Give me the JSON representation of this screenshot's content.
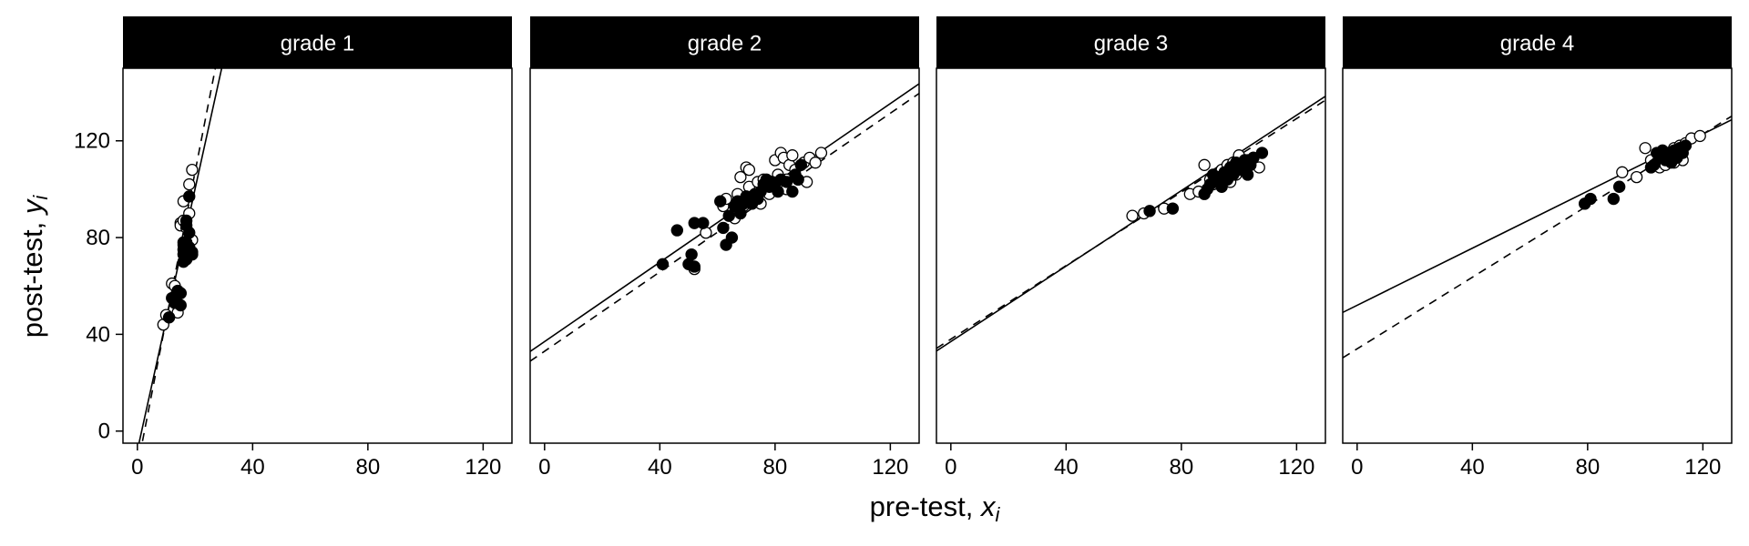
{
  "chart_data": {
    "type": "scatter",
    "xlabel": "pre-test, ",
    "xlabel_var": "x",
    "xlabel_sub": "i",
    "ylabel": "post-test, ",
    "ylabel_var": "y",
    "ylabel_sub": "i",
    "xlim": [
      -5,
      130
    ],
    "ylim": [
      -5,
      150
    ],
    "xticks": [
      0,
      40,
      80,
      120
    ],
    "yticks": [
      0,
      40,
      80,
      120
    ],
    "grid": false,
    "legend": "none",
    "colors": {
      "strip_bg": "#000000",
      "strip_text": "#ffffff",
      "points": "#000000",
      "lines": "#000000"
    },
    "panels": [
      {
        "label": "grade 1",
        "fit_solid": {
          "intercept": -8,
          "slope": 5.4
        },
        "fit_dashed": {
          "intercept": -15,
          "slope": 6.1
        },
        "points_open": [
          [
            9,
            44
          ],
          [
            10,
            48
          ],
          [
            12,
            61
          ],
          [
            13,
            54
          ],
          [
            14,
            52
          ],
          [
            14,
            49
          ],
          [
            15,
            86
          ],
          [
            15,
            85
          ],
          [
            16,
            87
          ],
          [
            16,
            77
          ],
          [
            16,
            95
          ],
          [
            17,
            84
          ],
          [
            17,
            72
          ],
          [
            18,
            90
          ],
          [
            18,
            102
          ],
          [
            19,
            108
          ],
          [
            19,
            79
          ],
          [
            15,
            57
          ],
          [
            13,
            60
          ]
        ],
        "points_filled": [
          [
            11,
            47
          ],
          [
            12,
            55
          ],
          [
            13,
            53
          ],
          [
            14,
            58
          ],
          [
            15,
            57
          ],
          [
            15,
            52
          ],
          [
            16,
            70
          ],
          [
            16,
            73
          ],
          [
            16,
            75
          ],
          [
            17,
            71
          ],
          [
            17,
            85
          ],
          [
            17,
            78
          ],
          [
            17,
            87
          ],
          [
            18,
            82
          ],
          [
            18,
            97
          ],
          [
            18,
            76
          ],
          [
            19,
            74
          ],
          [
            19,
            73
          ],
          [
            16,
            78
          ]
        ]
      },
      {
        "label": "grade 2",
        "fit_solid": {
          "intercept": 37,
          "slope": 0.82
        },
        "fit_dashed": {
          "intercept": 33,
          "slope": 0.82
        },
        "points_open": [
          [
            52,
            67
          ],
          [
            56,
            82
          ],
          [
            62,
            93
          ],
          [
            63,
            96
          ],
          [
            66,
            88
          ],
          [
            67,
            98
          ],
          [
            68,
            105
          ],
          [
            69,
            93
          ],
          [
            70,
            109
          ],
          [
            71,
            101
          ],
          [
            72,
            97
          ],
          [
            74,
            103
          ],
          [
            75,
            94
          ],
          [
            76,
            104
          ],
          [
            78,
            98
          ],
          [
            79,
            103
          ],
          [
            80,
            112
          ],
          [
            81,
            106
          ],
          [
            82,
            115
          ],
          [
            83,
            113
          ],
          [
            84,
            104
          ],
          [
            85,
            110
          ],
          [
            86,
            114
          ],
          [
            87,
            108
          ],
          [
            88,
            104
          ],
          [
            90,
            111
          ],
          [
            92,
            113
          ],
          [
            94,
            111
          ],
          [
            96,
            115
          ],
          [
            71,
            108
          ],
          [
            84,
            100
          ],
          [
            91,
            103
          ]
        ],
        "points_filled": [
          [
            41,
            69
          ],
          [
            46,
            83
          ],
          [
            50,
            69
          ],
          [
            51,
            73
          ],
          [
            52,
            68
          ],
          [
            52,
            86
          ],
          [
            55,
            86
          ],
          [
            61,
            95
          ],
          [
            62,
            84
          ],
          [
            63,
            77
          ],
          [
            64,
            89
          ],
          [
            65,
            80
          ],
          [
            66,
            93
          ],
          [
            67,
            95
          ],
          [
            68,
            90
          ],
          [
            69,
            94
          ],
          [
            70,
            97
          ],
          [
            71,
            95
          ],
          [
            72,
            94
          ],
          [
            73,
            98
          ],
          [
            74,
            96
          ],
          [
            75,
            99
          ],
          [
            76,
            102
          ],
          [
            77,
            104
          ],
          [
            78,
            101
          ],
          [
            79,
            103
          ],
          [
            80,
            102
          ],
          [
            81,
            99
          ],
          [
            82,
            104
          ],
          [
            84,
            103
          ],
          [
            86,
            99
          ],
          [
            87,
            106
          ],
          [
            88,
            104
          ],
          [
            89,
            110
          ]
        ]
      },
      {
        "label": "grade 3",
        "fit_solid": {
          "intercept": 37,
          "slope": 0.78
        },
        "fit_dashed": {
          "intercept": 38,
          "slope": 0.76
        },
        "points_open": [
          [
            63,
            89
          ],
          [
            67,
            90
          ],
          [
            74,
            92
          ],
          [
            83,
            98
          ],
          [
            86,
            99
          ],
          [
            88,
            110
          ],
          [
            90,
            104
          ],
          [
            91,
            102
          ],
          [
            92,
            106
          ],
          [
            94,
            108
          ],
          [
            95,
            104
          ],
          [
            96,
            110
          ],
          [
            97,
            103
          ],
          [
            98,
            111
          ],
          [
            99,
            106
          ],
          [
            100,
            114
          ],
          [
            101,
            110
          ],
          [
            103,
            112
          ],
          [
            105,
            113
          ],
          [
            107,
            109
          ],
          [
            102,
            108
          ]
        ],
        "points_filled": [
          [
            69,
            91
          ],
          [
            77,
            92
          ],
          [
            88,
            98
          ],
          [
            89,
            100
          ],
          [
            90,
            102
          ],
          [
            91,
            106
          ],
          [
            92,
            103
          ],
          [
            93,
            105
          ],
          [
            94,
            101
          ],
          [
            95,
            107
          ],
          [
            96,
            104
          ],
          [
            97,
            109
          ],
          [
            98,
            106
          ],
          [
            99,
            111
          ],
          [
            100,
            108
          ],
          [
            101,
            110
          ],
          [
            102,
            112
          ],
          [
            103,
            106
          ],
          [
            104,
            110
          ],
          [
            105,
            113
          ],
          [
            108,
            115
          ]
        ]
      },
      {
        "label": "grade 4",
        "fit_solid": {
          "intercept": 52,
          "slope": 0.59
        },
        "fit_dashed": {
          "intercept": 34,
          "slope": 0.74
        },
        "points_open": [
          [
            92,
            107
          ],
          [
            97,
            105
          ],
          [
            100,
            117
          ],
          [
            102,
            112
          ],
          [
            104,
            111
          ],
          [
            105,
            109
          ],
          [
            106,
            114
          ],
          [
            107,
            110
          ],
          [
            108,
            115
          ],
          [
            109,
            113
          ],
          [
            110,
            117
          ],
          [
            111,
            115
          ],
          [
            112,
            118
          ],
          [
            114,
            119
          ],
          [
            116,
            121
          ],
          [
            119,
            122
          ],
          [
            113,
            112
          ],
          [
            110,
            111
          ]
        ],
        "points_filled": [
          [
            79,
            94
          ],
          [
            81,
            96
          ],
          [
            89,
            96
          ],
          [
            91,
            101
          ],
          [
            102,
            109
          ],
          [
            103,
            110
          ],
          [
            104,
            115
          ],
          [
            105,
            113
          ],
          [
            106,
            116
          ],
          [
            107,
            112
          ],
          [
            108,
            114
          ],
          [
            109,
            111
          ],
          [
            110,
            116
          ],
          [
            111,
            113
          ],
          [
            112,
            117
          ],
          [
            113,
            115
          ],
          [
            114,
            118
          ],
          [
            110,
            113
          ]
        ]
      }
    ]
  }
}
